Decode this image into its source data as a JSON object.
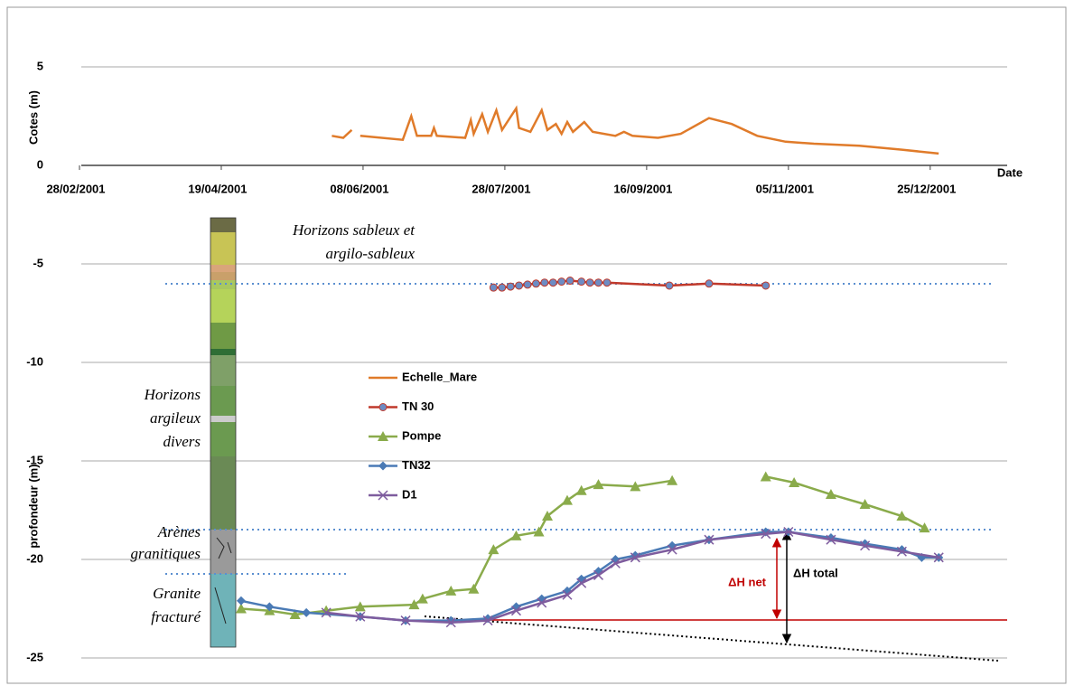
{
  "chart_data": {
    "type": "line",
    "y_label_top": "Cotes (m)",
    "y_label": "profondeur (m)",
    "x_label": "Date",
    "xlim": [
      "2001-02-28",
      "2002-01-24"
    ],
    "xticks": [
      {
        "value": "2001-02-28",
        "label": "28/02/2001"
      },
      {
        "value": "2001-04-19",
        "label": "19/04/2001"
      },
      {
        "value": "2001-06-08",
        "label": "08/06/2001"
      },
      {
        "value": "2001-07-28",
        "label": "28/07/2001"
      },
      {
        "value": "2001-09-16",
        "label": "16/09/2001"
      },
      {
        "value": "2001-11-05",
        "label": "05/11/2001"
      },
      {
        "value": "2001-12-25",
        "label": "25/12/2001"
      }
    ],
    "ylim": [
      -25,
      5
    ],
    "yticks": [
      -25,
      -20,
      -15,
      -10,
      -5,
      0,
      5
    ],
    "grid": true,
    "series": [
      {
        "name": "Echelle_Mare",
        "color": "#e07b2a",
        "x": [
          "2001-05-28",
          "2001-06-01",
          "2001-06-04",
          "2001-06-05",
          "2001-06-07",
          "2001-06-22",
          "2001-06-25",
          "2001-06-27",
          "2001-07-02",
          "2001-07-03",
          "2001-07-04",
          "2001-07-14",
          "2001-07-16",
          "2001-07-17",
          "2001-07-20",
          "2001-07-22",
          "2001-07-25",
          "2001-07-27",
          "2001-08-01",
          "2001-08-02",
          "2001-08-06",
          "2001-08-10",
          "2001-08-12",
          "2001-08-15",
          "2001-08-17",
          "2001-08-19",
          "2001-08-21",
          "2001-08-25",
          "2001-08-28",
          "2001-09-05",
          "2001-09-08",
          "2001-09-11",
          "2001-09-20",
          "2001-09-28",
          "2001-10-08",
          "2001-10-16",
          "2001-10-25",
          "2001-11-04",
          "2001-11-14",
          "2001-11-30",
          "2001-12-15",
          "2001-12-28"
        ],
        "values": [
          1.5,
          1.4,
          1.8,
          null,
          1.5,
          1.3,
          2.5,
          1.5,
          1.5,
          1.9,
          1.5,
          1.4,
          2.3,
          1.6,
          2.6,
          1.7,
          2.8,
          1.8,
          2.9,
          1.9,
          1.7,
          2.8,
          1.8,
          2.1,
          1.6,
          2.2,
          1.7,
          2.2,
          1.7,
          1.5,
          1.7,
          1.5,
          1.4,
          1.6,
          2.4,
          2.1,
          1.5,
          1.2,
          1.1,
          1.0,
          0.8,
          0.6
        ]
      },
      {
        "name": "TN 30",
        "color": "#c0392b",
        "marker": "circle",
        "marker_color": "#6d8cc4",
        "x": [
          "2001-07-24",
          "2001-07-27",
          "2001-07-30",
          "2001-08-02",
          "2001-08-05",
          "2001-08-08",
          "2001-08-11",
          "2001-08-14",
          "2001-08-17",
          "2001-08-20",
          "2001-08-24",
          "2001-08-27",
          "2001-08-30",
          "2001-09-02",
          "2001-09-24",
          "2001-10-08",
          "2001-10-28"
        ],
        "values": [
          -6.2,
          -6.2,
          -6.15,
          -6.1,
          -6.05,
          -6.0,
          -5.95,
          -5.95,
          -5.9,
          -5.85,
          -5.9,
          -5.95,
          -5.95,
          -5.95,
          -6.1,
          -6.0,
          -6.1
        ]
      },
      {
        "name": "Pompe",
        "color": "#8aab4b",
        "marker": "triangle",
        "marker_color": "#8aab4b",
        "x": [
          "2001-04-26",
          "2001-05-06",
          "2001-05-15",
          "2001-05-26",
          "2001-06-07",
          "2001-06-26",
          "2001-06-29",
          "2001-07-09",
          "2001-07-17",
          "2001-07-24",
          "2001-08-01",
          "2001-08-09",
          "2001-08-12",
          "2001-08-19",
          "2001-08-24",
          "2001-08-30",
          "2001-09-12",
          "2001-09-25",
          "2001-10-10",
          "2001-10-28",
          "2001-11-07",
          "2001-11-20",
          "2001-12-02",
          "2001-12-15",
          "2001-12-23"
        ],
        "values": [
          -22.5,
          -22.6,
          -22.8,
          -22.6,
          -22.4,
          -22.3,
          -22.0,
          -21.6,
          -21.5,
          -19.5,
          -18.8,
          -18.6,
          -17.8,
          -17.0,
          -16.5,
          -16.2,
          -16.3,
          -16.0,
          null,
          -15.8,
          -16.1,
          -16.7,
          -17.2,
          -17.8,
          -18.4
        ]
      },
      {
        "name": "TN32",
        "color": "#4a7ab5",
        "marker": "diamond",
        "marker_color": "#4a7ab5",
        "x": [
          "2001-04-26",
          "2001-05-06",
          "2001-05-19",
          "2001-06-07",
          "2001-06-23",
          "2001-07-09",
          "2001-07-22",
          "2001-08-01",
          "2001-08-10",
          "2001-08-19",
          "2001-08-24",
          "2001-08-30",
          "2001-09-05",
          "2001-09-12",
          "2001-09-25",
          "2001-10-08",
          "2001-10-28",
          "2001-11-05",
          "2001-11-20",
          "2001-12-02",
          "2001-12-15",
          "2001-12-22",
          "2001-12-28"
        ],
        "values": [
          -22.1,
          -22.4,
          -22.7,
          -22.9,
          -23.1,
          -23.1,
          -23.0,
          -22.4,
          -22.0,
          -21.6,
          -21.0,
          -20.6,
          -20.0,
          -19.8,
          -19.3,
          -19.0,
          -18.6,
          -18.6,
          -18.9,
          -19.2,
          -19.5,
          -19.9,
          -19.9
        ]
      },
      {
        "name": "D1",
        "color": "#7e5c9e",
        "marker": "x",
        "marker_color": "#7e5c9e",
        "x": [
          "2001-05-26",
          "2001-06-07",
          "2001-06-23",
          "2001-07-09",
          "2001-07-22",
          "2001-08-01",
          "2001-08-10",
          "2001-08-19",
          "2001-08-24",
          "2001-08-30",
          "2001-09-05",
          "2001-09-12",
          "2001-09-25",
          "2001-10-08",
          "2001-10-28",
          "2001-11-05",
          "2001-11-20",
          "2001-12-02",
          "2001-12-15",
          "2001-12-28"
        ],
        "values": [
          -22.7,
          -22.9,
          -23.1,
          -23.2,
          -23.1,
          -22.6,
          -22.2,
          -21.8,
          -21.2,
          -20.8,
          -20.2,
          -19.9,
          -19.5,
          -19.0,
          -18.7,
          -18.6,
          -19.0,
          -19.3,
          -19.6,
          -19.9
        ]
      }
    ],
    "annotations": [
      "Horizons sableux et",
      "argilo-sableux",
      "Horizons",
      "argileux",
      "divers",
      "Arènes",
      "granitiques",
      "Granite",
      "fracturé",
      "ΔH net",
      "ΔH total"
    ]
  }
}
